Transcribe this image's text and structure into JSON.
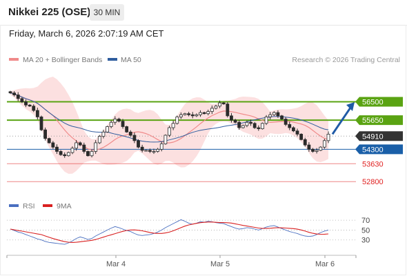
{
  "header": {
    "title": "Nikkei 225 (OSE)",
    "timeframe": "30 MIN"
  },
  "date_line": "Friday, March 6, 2026 2:07:19 AM CET",
  "legend": {
    "ma_bb": "MA 20 + Bollinger Bands",
    "ma50": "MA 50"
  },
  "credit": "Research © 2026 Trading Central",
  "rsi_legend": {
    "rsi": "RSI",
    "ma9": "9MA"
  },
  "colors": {
    "resistance": "#5aa312",
    "support": "#1a5fa8",
    "target": "#e02020",
    "current": "#333333",
    "candle": "#2b2b2b",
    "ma_bb": "#f08a8a",
    "ma50": "#2f5d9e",
    "band_fill": "#fbd6d6",
    "arrow": "#1f5aa6",
    "rsi": "#4a6fc0",
    "rsi_ma": "#d92020"
  },
  "chart_data": {
    "type": "candlestick",
    "price_axis": {
      "min": 52200,
      "max": 57700
    },
    "x_ticks": [
      "Mar 4",
      "Mar 5",
      "Mar 6"
    ],
    "levels": [
      {
        "label": "56500",
        "value": 56500,
        "kind": "resistance"
      },
      {
        "label": "55650",
        "value": 55650,
        "kind": "resistance"
      },
      {
        "label": "54910",
        "value": 54910,
        "kind": "current"
      },
      {
        "label": "54300",
        "value": 54300,
        "kind": "support"
      },
      {
        "label": "53630",
        "value": 53630,
        "kind": "target"
      },
      {
        "label": "52800",
        "value": 52800,
        "kind": "target"
      }
    ],
    "closes": [
      56910,
      56820,
      56650,
      56500,
      56350,
      56300,
      56100,
      55800,
      55200,
      54800,
      54600,
      54400,
      54200,
      54050,
      54000,
      54150,
      54350,
      54600,
      54500,
      54200,
      54000,
      54200,
      54600,
      54900,
      55100,
      55350,
      55550,
      55700,
      55600,
      55350,
      55100,
      54950,
      54700,
      54400,
      54250,
      54250,
      54200,
      54200,
      54300,
      54550,
      54950,
      55300,
      55500,
      55800,
      55900,
      55950,
      55900,
      55850,
      55900,
      56000,
      55950,
      56050,
      56200,
      56300,
      56450,
      56400,
      55850,
      55650,
      55550,
      55300,
      55400,
      55550,
      55500,
      55300,
      55250,
      55500,
      55800,
      55900,
      56000,
      55850,
      55700,
      55450,
      55300,
      55150,
      55000,
      54750,
      54500,
      54300,
      54200,
      54250,
      54400,
      54700,
      55000
    ],
    "rsi": {
      "axis": {
        "min": 10,
        "max": 80
      },
      "ticks": [
        "70",
        "50",
        "30"
      ],
      "tick_values": [
        70,
        50,
        30
      ],
      "values": [
        52,
        49,
        46,
        44,
        41,
        38,
        35,
        32,
        30,
        27,
        25,
        24,
        23,
        22,
        21,
        24,
        28,
        33,
        36,
        34,
        31,
        33,
        38,
        42,
        46,
        50,
        54,
        57,
        55,
        52,
        49,
        47,
        43,
        40,
        39,
        40,
        41,
        43,
        46,
        50,
        55,
        59,
        63,
        67,
        71,
        68,
        64,
        62,
        64,
        67,
        66,
        68,
        67,
        65,
        64,
        63,
        60,
        57,
        54,
        52,
        53,
        55,
        54,
        52,
        50,
        53,
        56,
        58,
        59,
        56,
        53,
        50,
        47,
        45,
        43,
        40,
        38,
        37,
        38,
        41,
        45,
        48,
        50
      ]
    }
  }
}
